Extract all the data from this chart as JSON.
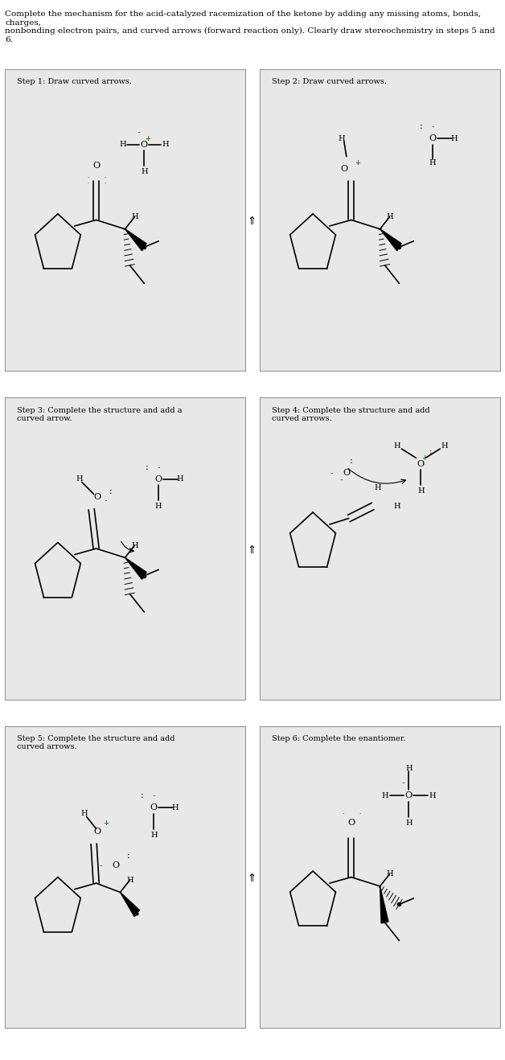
{
  "title_text": "Complete the mechanism for the acid-catalyzed racemization of the ketone by adding any missing atoms, bonds, charges,\nnonbonding electron pairs, and curved arrows (forward reaction only). Clearly draw stereochemistry in steps 5 and 6.",
  "bg_color": "#f0f0f0",
  "box_bg": "#e8e8e8",
  "box_edge": "#999999",
  "title_fontsize": 7.5,
  "step_label_fontsize": 7.5,
  "steps": [
    {
      "label": "Step 1: Draw curved arrows."
    },
    {
      "label": "Step 2: Draw curved arrows."
    },
    {
      "label": "Step 3: Complete the structure and add a\ncurved arrow."
    },
    {
      "label": "Step 4: Complete the structure and add\ncurved arrows."
    },
    {
      "label": "Step 5: Complete the structure and add\ncurved arrows."
    },
    {
      "label": "Step 6: Complete the enantiomer."
    }
  ],
  "arrow_color": "#333333",
  "struct_color": "#111111",
  "charge_color": "#2d7a2d"
}
